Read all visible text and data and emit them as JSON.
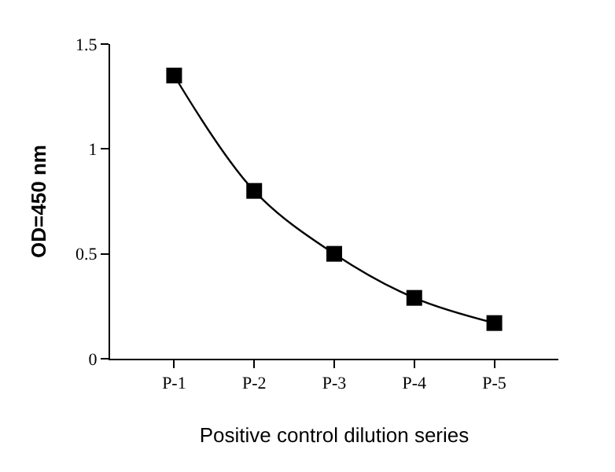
{
  "chart_data": {
    "type": "line",
    "xlabel": "Positive control dilution series",
    "ylabel": "OD=450 nm",
    "categories": [
      "P-1",
      "P-2",
      "P-3",
      "P-4",
      "P-5"
    ],
    "series": [
      {
        "color": "#000000",
        "values": [
          1.35,
          0.8,
          0.5,
          0.29,
          0.17
        ]
      }
    ],
    "ylim": [
      0,
      1.5
    ],
    "yticks": [
      0,
      0.5,
      1,
      1.5
    ],
    "legend": false,
    "marker": "square",
    "line_style": "solid"
  }
}
